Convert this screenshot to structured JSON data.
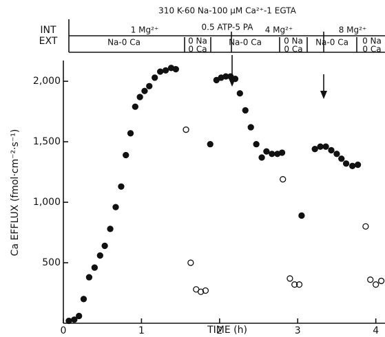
{
  "header": {
    "conditions_1": "310 K-60 Na-100 μM Ca²⁺-1 EGTA",
    "conditions_2": "0.5 ATP-5 PA",
    "int": "INT",
    "ext": "EXT",
    "int_segments": [
      "1 Mg²⁺",
      "4 Mg²⁺",
      "8 Mg²⁺"
    ],
    "ext_segments": [
      "Na-0 Ca",
      "0 Na",
      "0 Ca",
      "Na-0 Ca",
      "0 Na",
      "0 Ca",
      "Na-0 Ca",
      "0 Na",
      "0 Ca"
    ]
  },
  "chart_data": {
    "type": "scatter",
    "xlabel": "TIME (h)",
    "ylabel": "Ca EFFLUX (fmol·cm⁻²·s⁻¹)",
    "xlim": [
      0,
      4.1
    ],
    "ylim": [
      0,
      2200
    ],
    "xticks": [
      0,
      1,
      2,
      3,
      4
    ],
    "yticks": [
      500,
      {
        "value": 1000,
        "label": "1,000"
      },
      {
        "value": 1500,
        "label": "1,500"
      },
      {
        "value": 2000,
        "label": "2,000"
      }
    ],
    "series": [
      {
        "color": "#111",
        "fill": "#111",
        "x": [
          0.07,
          0.14,
          0.2,
          0.26,
          0.33,
          0.4,
          0.47,
          0.53,
          0.6,
          0.67,
          0.74,
          0.8,
          0.86,
          0.92,
          0.98,
          1.04,
          1.1,
          1.17,
          1.24,
          1.31,
          1.38,
          1.44,
          1.88,
          1.96,
          2.02,
          2.08,
          2.14,
          2.2,
          2.26,
          2.33,
          2.4,
          2.47,
          2.54,
          2.6,
          2.67,
          2.74,
          2.8,
          3.05,
          3.22,
          3.29,
          3.36,
          3.43,
          3.5,
          3.56,
          3.62,
          3.7,
          3.77
        ],
        "values": [
          20,
          30,
          60,
          200,
          380,
          460,
          560,
          640,
          780,
          960,
          1130,
          1390,
          1570,
          1790,
          1870,
          1920,
          1960,
          2030,
          2080,
          2090,
          2110,
          2100,
          1480,
          2010,
          2030,
          2040,
          2040,
          2020,
          1900,
          1760,
          1620,
          1480,
          1370,
          1420,
          1400,
          1400,
          1410,
          890,
          1440,
          1460,
          1460,
          1430,
          1400,
          1360,
          1320,
          1300,
          1310
        ]
      },
      {
        "color": "#111",
        "fill": "none",
        "x": [
          1.57,
          1.63,
          1.7,
          1.76,
          1.82,
          2.81,
          2.9,
          2.96,
          3.02,
          3.87,
          3.93,
          4.0,
          4.07
        ],
        "values": [
          1600,
          500,
          280,
          260,
          270,
          1190,
          370,
          320,
          320,
          800,
          360,
          320,
          350
        ]
      }
    ]
  }
}
